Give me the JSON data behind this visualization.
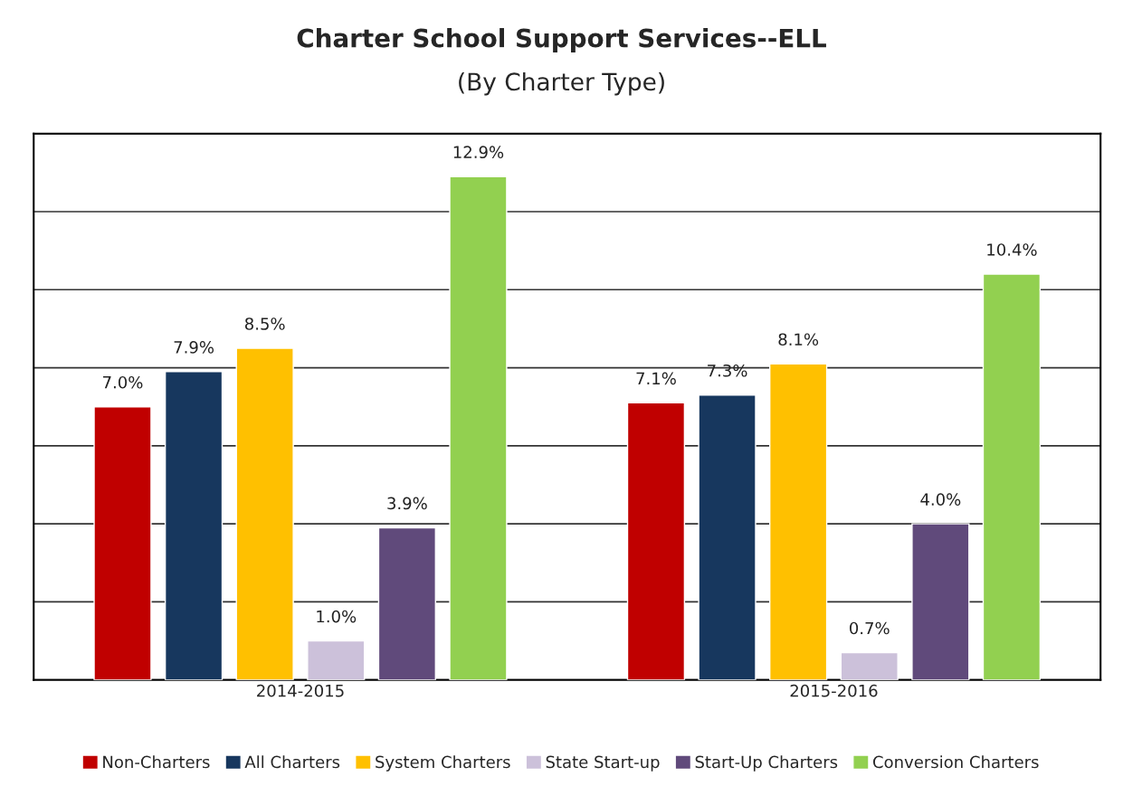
{
  "chart_data": {
    "type": "bar",
    "title": "Charter School Support Services--ELL",
    "subtitle": "(By Charter Type)",
    "categories": [
      "2014-2015",
      "2015-2016"
    ],
    "series": [
      {
        "name": "Non-Charters",
        "color": "#c00000",
        "values": [
          7.0,
          7.1
        ],
        "value_labels": [
          "7.0%",
          "7.1%"
        ]
      },
      {
        "name": "All Charters",
        "color": "#17375e",
        "values": [
          7.9,
          7.3
        ],
        "value_labels": [
          "7.9%",
          "7.3%"
        ]
      },
      {
        "name": "System Charters",
        "color": "#ffc000",
        "values": [
          8.5,
          8.1
        ],
        "value_labels": [
          "8.5%",
          "8.1%"
        ]
      },
      {
        "name": "State Start-up",
        "color": "#ccc1da",
        "values": [
          1.0,
          0.7
        ],
        "value_labels": [
          "1.0%",
          "0.7%"
        ]
      },
      {
        "name": "Start-Up Charters",
        "color": "#604a7b",
        "values": [
          3.9,
          4.0
        ],
        "value_labels": [
          "3.9%",
          "4.0%"
        ]
      },
      {
        "name": "Conversion Charters",
        "color": "#92d050",
        "values": [
          12.9,
          10.4
        ],
        "value_labels": [
          "12.9%",
          "10.4%"
        ]
      }
    ],
    "ylim": [
      0,
      14
    ],
    "yticks": [
      {
        "value": 0,
        "label": null
      },
      {
        "value": 2,
        "label": null
      },
      {
        "value": 4,
        "label": null
      },
      {
        "value": 6,
        "label": null
      },
      {
        "value": 8,
        "label": null
      },
      {
        "value": 10,
        "label": null
      },
      {
        "value": 12,
        "label": null
      },
      {
        "value": 14,
        "label": null
      }
    ],
    "tick_labels": "x",
    "grid": "y",
    "legend": "bottom"
  }
}
